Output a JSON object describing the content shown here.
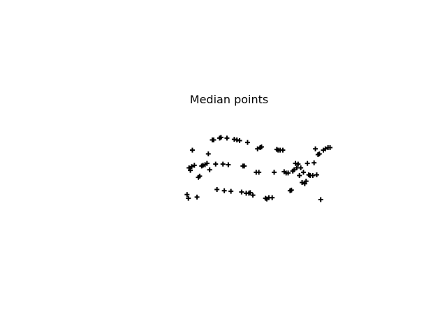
{
  "chart_data": {
    "type": "scatter",
    "title": "Median points",
    "xlabel": "",
    "ylabel": "",
    "xlim": [
      0,
      230
    ],
    "ylim": [
      0,
      110
    ],
    "grid": false,
    "axes_visible": false,
    "marker": "plus",
    "marker_color": "#000000",
    "points": [
      {
        "x": 4,
        "y": 8
      },
      {
        "x": 6,
        "y": 2
      },
      {
        "x": 19,
        "y": 4
      },
      {
        "x": 7,
        "y": 50
      },
      {
        "x": 9,
        "y": 46
      },
      {
        "x": 12,
        "y": 78
      },
      {
        "x": 11,
        "y": 52
      },
      {
        "x": 15,
        "y": 54
      },
      {
        "x": 21,
        "y": 35
      },
      {
        "x": 23,
        "y": 37
      },
      {
        "x": 26,
        "y": 53
      },
      {
        "x": 28,
        "y": 54
      },
      {
        "x": 31,
        "y": 55
      },
      {
        "x": 34,
        "y": 57
      },
      {
        "x": 36,
        "y": 72
      },
      {
        "x": 38,
        "y": 47
      },
      {
        "x": 42,
        "y": 94
      },
      {
        "x": 44,
        "y": 94
      },
      {
        "x": 47,
        "y": 56
      },
      {
        "x": 49,
        "y": 16
      },
      {
        "x": 53,
        "y": 97
      },
      {
        "x": 55,
        "y": 98
      },
      {
        "x": 58,
        "y": 56
      },
      {
        "x": 60,
        "y": 14
      },
      {
        "x": 64,
        "y": 97
      },
      {
        "x": 66,
        "y": 55
      },
      {
        "x": 70,
        "y": 13
      },
      {
        "x": 75,
        "y": 95
      },
      {
        "x": 79,
        "y": 94
      },
      {
        "x": 83,
        "y": 93
      },
      {
        "x": 86,
        "y": 12
      },
      {
        "x": 88,
        "y": 53
      },
      {
        "x": 90,
        "y": 53
      },
      {
        "x": 93,
        "y": 10
      },
      {
        "x": 95,
        "y": 90
      },
      {
        "x": 97,
        "y": 10
      },
      {
        "x": 99,
        "y": 11
      },
      {
        "x": 103,
        "y": 7
      },
      {
        "x": 108,
        "y": 43
      },
      {
        "x": 110,
        "y": 80
      },
      {
        "x": 112,
        "y": 43
      },
      {
        "x": 114,
        "y": 82
      },
      {
        "x": 116,
        "y": 83
      },
      {
        "x": 122,
        "y": 2
      },
      {
        "x": 124,
        "y": 1
      },
      {
        "x": 127,
        "y": 3
      },
      {
        "x": 132,
        "y": 3
      },
      {
        "x": 135,
        "y": 43
      },
      {
        "x": 139,
        "y": 79
      },
      {
        "x": 141,
        "y": 78
      },
      {
        "x": 144,
        "y": 78
      },
      {
        "x": 148,
        "y": 78
      },
      {
        "x": 150,
        "y": 44
      },
      {
        "x": 153,
        "y": 42
      },
      {
        "x": 156,
        "y": 42
      },
      {
        "x": 159,
        "y": 14
      },
      {
        "x": 161,
        "y": 15
      },
      {
        "x": 163,
        "y": 45
      },
      {
        "x": 165,
        "y": 47
      },
      {
        "x": 167,
        "y": 57
      },
      {
        "x": 169,
        "y": 50
      },
      {
        "x": 171,
        "y": 56
      },
      {
        "x": 173,
        "y": 38
      },
      {
        "x": 175,
        "y": 50
      },
      {
        "x": 177,
        "y": 27
      },
      {
        "x": 179,
        "y": 43
      },
      {
        "x": 181,
        "y": 25
      },
      {
        "x": 183,
        "y": 29
      },
      {
        "x": 185,
        "y": 57
      },
      {
        "x": 187,
        "y": 39
      },
      {
        "x": 189,
        "y": 38
      },
      {
        "x": 193,
        "y": 38
      },
      {
        "x": 195,
        "y": 58
      },
      {
        "x": 197,
        "y": 80
      },
      {
        "x": 199,
        "y": 39
      },
      {
        "x": 201,
        "y": 71
      },
      {
        "x": 203,
        "y": 72
      },
      {
        "x": 205,
        "y": 0
      },
      {
        "x": 209,
        "y": 78
      },
      {
        "x": 212,
        "y": 80
      },
      {
        "x": 216,
        "y": 82
      },
      {
        "x": 219,
        "y": 82
      }
    ]
  }
}
